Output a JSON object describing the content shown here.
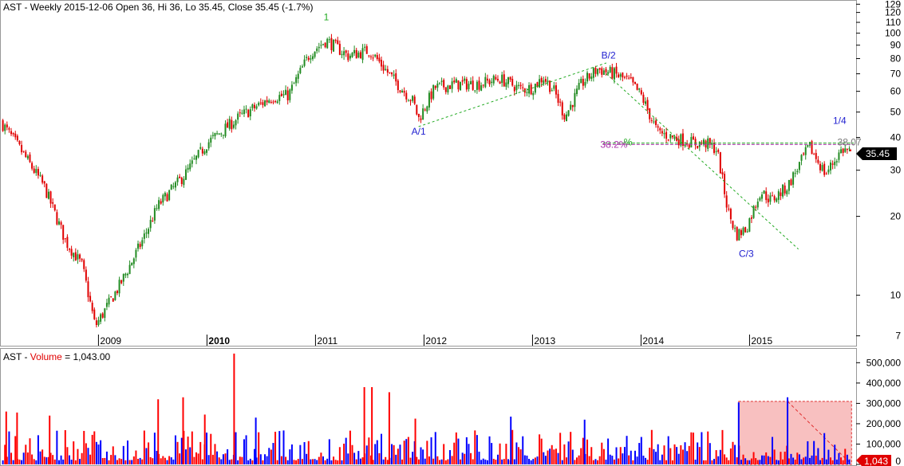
{
  "price_panel": {
    "title": "AST - Weekly 2015-12-06 Open 36, Hi 36, Lo 35.45, Close 35.45 (-1.7%)",
    "last_price_label": "35.45"
  },
  "volume_panel": {
    "title_prefix": "AST - ",
    "title_volume": "Volume",
    "title_suffix": " = 1,043.00",
    "last_volume_label": "1,043"
  },
  "colors": {
    "up_candle": "#228B22",
    "down_candle": "#E00000",
    "up_volume": "#0000FF",
    "down_volume": "#FF0000",
    "wave_label": "#2020D0",
    "trendline": "#22AA22",
    "fib_line": "#AA33AA",
    "volume_box_fill": "#F8C0C0",
    "volume_box_border": "#E03030"
  },
  "chart_data": [
    {
      "type": "candlestick",
      "scale": "log",
      "y_tick_labels": [
        "129",
        "120",
        "110",
        "100",
        "90",
        "80",
        "70",
        "60",
        "50",
        "40",
        "30",
        "20",
        "10",
        "7"
      ],
      "y_ticks": [
        129,
        120,
        110,
        100,
        90,
        80,
        70,
        60,
        50,
        40,
        30,
        20,
        10,
        7
      ],
      "x_tick_labels": [
        "2009",
        "2010",
        "2011",
        "2012",
        "2013",
        "2014",
        "2015"
      ],
      "x_ticks": [
        2009,
        2010,
        2011,
        2012,
        2013,
        2014,
        2015
      ],
      "xlim": [
        2008.1,
        2015.96
      ],
      "ylim": [
        6.6,
        132
      ],
      "grid": false,
      "path": [
        [
          2008.1,
          46
        ],
        [
          2008.3,
          35
        ],
        [
          2008.5,
          26
        ],
        [
          2008.7,
          16
        ],
        [
          2008.85,
          13
        ],
        [
          2008.97,
          7.6
        ],
        [
          2009.2,
          11
        ],
        [
          2009.4,
          16
        ],
        [
          2009.55,
          22
        ],
        [
          2009.8,
          29
        ],
        [
          2010.0,
          38
        ],
        [
          2010.3,
          48
        ],
        [
          2010.6,
          57
        ],
        [
          2010.75,
          58
        ],
        [
          2010.95,
          84
        ],
        [
          2011.1,
          94
        ],
        [
          2011.3,
          82
        ],
        [
          2011.5,
          86
        ],
        [
          2011.7,
          68
        ],
        [
          2011.9,
          55
        ],
        [
          2011.95,
          47
        ],
        [
          2012.1,
          62
        ],
        [
          2012.3,
          64
        ],
        [
          2012.5,
          64
        ],
        [
          2012.7,
          67
        ],
        [
          2012.9,
          61
        ],
        [
          2013.0,
          62
        ],
        [
          2013.1,
          68
        ],
        [
          2013.2,
          60
        ],
        [
          2013.3,
          48
        ],
        [
          2013.45,
          64
        ],
        [
          2013.6,
          73
        ],
        [
          2013.75,
          70
        ],
        [
          2013.9,
          65
        ],
        [
          2014.0,
          58
        ],
        [
          2014.15,
          42
        ],
        [
          2014.3,
          40
        ],
        [
          2014.5,
          38
        ],
        [
          2014.6,
          38
        ],
        [
          2014.7,
          36
        ],
        [
          2014.8,
          21
        ],
        [
          2014.88,
          17
        ],
        [
          2014.97,
          18
        ],
        [
          2015.1,
          25
        ],
        [
          2015.2,
          23
        ],
        [
          2015.35,
          26
        ],
        [
          2015.55,
          37
        ],
        [
          2015.7,
          29
        ],
        [
          2015.85,
          36
        ],
        [
          2015.93,
          35.45
        ]
      ],
      "last": {
        "open": 36,
        "high": 36,
        "low": 35.45,
        "close": 35.45
      },
      "annotations": [
        {
          "text": "1",
          "x": 2011.1,
          "y": 112,
          "color": "#22AA22"
        },
        {
          "text": "A/1",
          "x": 2011.95,
          "y": 41,
          "color": "#2020D0"
        },
        {
          "text": "B/2",
          "x": 2013.7,
          "y": 80,
          "color": "#2020D0"
        },
        {
          "text": "C/3",
          "x": 2014.97,
          "y": 14,
          "color": "#2020D0"
        },
        {
          "text": "1/4",
          "x": 2015.83,
          "y": 45,
          "color": "#2020D0"
        },
        {
          "text": "38.2%",
          "x": 2013.75,
          "y": 36.5,
          "color": "#AA33AA"
        },
        {
          "text": "%",
          "x": 2013.88,
          "y": 37.3,
          "color": "#22AA22"
        },
        {
          "text": "38.07",
          "x": 2015.92,
          "y": 37.3,
          "color": "#777777"
        }
      ],
      "trendlines": [
        {
          "from": [
            2011.95,
            44
          ],
          "to": [
            2013.68,
            77
          ],
          "color": "#22AA22",
          "dashed": true
        },
        {
          "from": [
            2013.68,
            70
          ],
          "to": [
            2015.45,
            15
          ],
          "color": "#22AA22",
          "dashed": true
        }
      ],
      "horizontal_lines": [
        {
          "y": 38.07,
          "x_start": 2013.65,
          "color": "#22AA22"
        },
        {
          "y": 37.6,
          "x_start": 2013.65,
          "color": "#AA33AA"
        }
      ]
    },
    {
      "type": "bar",
      "series": "volume",
      "y_tick_labels": [
        "500,000",
        "400,000",
        "300,000",
        "200,000",
        "100,000",
        "0"
      ],
      "y_ticks": [
        500000,
        400000,
        300000,
        200000,
        100000,
        0
      ],
      "ylim": [
        0,
        560000
      ],
      "xlim": [
        2008.1,
        2015.96
      ],
      "grid": false,
      "typical_range": [
        20000,
        170000
      ],
      "spikes": [
        {
          "x": 2010.25,
          "value": 545000,
          "color": "down"
        },
        {
          "x": 2011.45,
          "value": 380000,
          "color": "down"
        },
        {
          "x": 2011.52,
          "value": 380000,
          "color": "down"
        },
        {
          "x": 2011.68,
          "value": 355000,
          "color": "down"
        },
        {
          "x": 2009.55,
          "value": 320000,
          "color": "down"
        },
        {
          "x": 2009.78,
          "value": 330000,
          "color": "down"
        },
        {
          "x": 2015.35,
          "value": 330000,
          "color": "up"
        },
        {
          "x": 2014.9,
          "value": 305000,
          "color": "up"
        },
        {
          "x": 2012.8,
          "value": 235000,
          "color": "up"
        },
        {
          "x": 2008.15,
          "value": 260000,
          "color": "down"
        },
        {
          "x": 2008.25,
          "value": 255000,
          "color": "down"
        },
        {
          "x": 2009.98,
          "value": 245000,
          "color": "down"
        },
        {
          "x": 2010.45,
          "value": 230000,
          "color": "up"
        },
        {
          "x": 2011.92,
          "value": 225000,
          "color": "down"
        },
        {
          "x": 2013.48,
          "value": 220000,
          "color": "up"
        },
        {
          "x": 2008.55,
          "value": 240000,
          "color": "down"
        }
      ],
      "highlight_box": {
        "x_range": [
          2014.9,
          2015.94
        ],
        "y_range": [
          0,
          310000
        ]
      },
      "highlight_trend": {
        "from": [
          2015.35,
          310000
        ],
        "to": [
          2015.94,
          0
        ]
      },
      "last_value": 1043
    }
  ]
}
